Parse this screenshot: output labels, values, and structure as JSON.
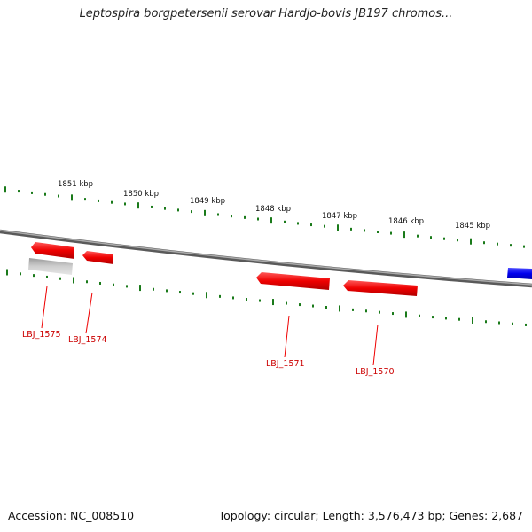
{
  "title": "Leptospira borgpetersenii serovar Hardjo-bovis JB197 chromos...",
  "footer": {
    "accession": "Accession: NC_008510",
    "summary": "Topology: circular; Length: 3,576,473 bp; Genes: 2,687"
  },
  "scale_labels": [
    "1851 kbp",
    "1850 kbp",
    "1849 kbp",
    "1848 kbp",
    "1847 kbp",
    "1846 kbp",
    "1845 kbp"
  ],
  "gene_labels": [
    "LBJ_1575",
    "LBJ_1574",
    "LBJ_1571",
    "LBJ_1570"
  ],
  "colors": {
    "backbone": "#888888",
    "tick": "#1a7a1a",
    "gene_red": "#ff0000",
    "gene_gray": "#bdbdbd",
    "gene_blue": "#0000ee",
    "label": "#cc0000"
  }
}
